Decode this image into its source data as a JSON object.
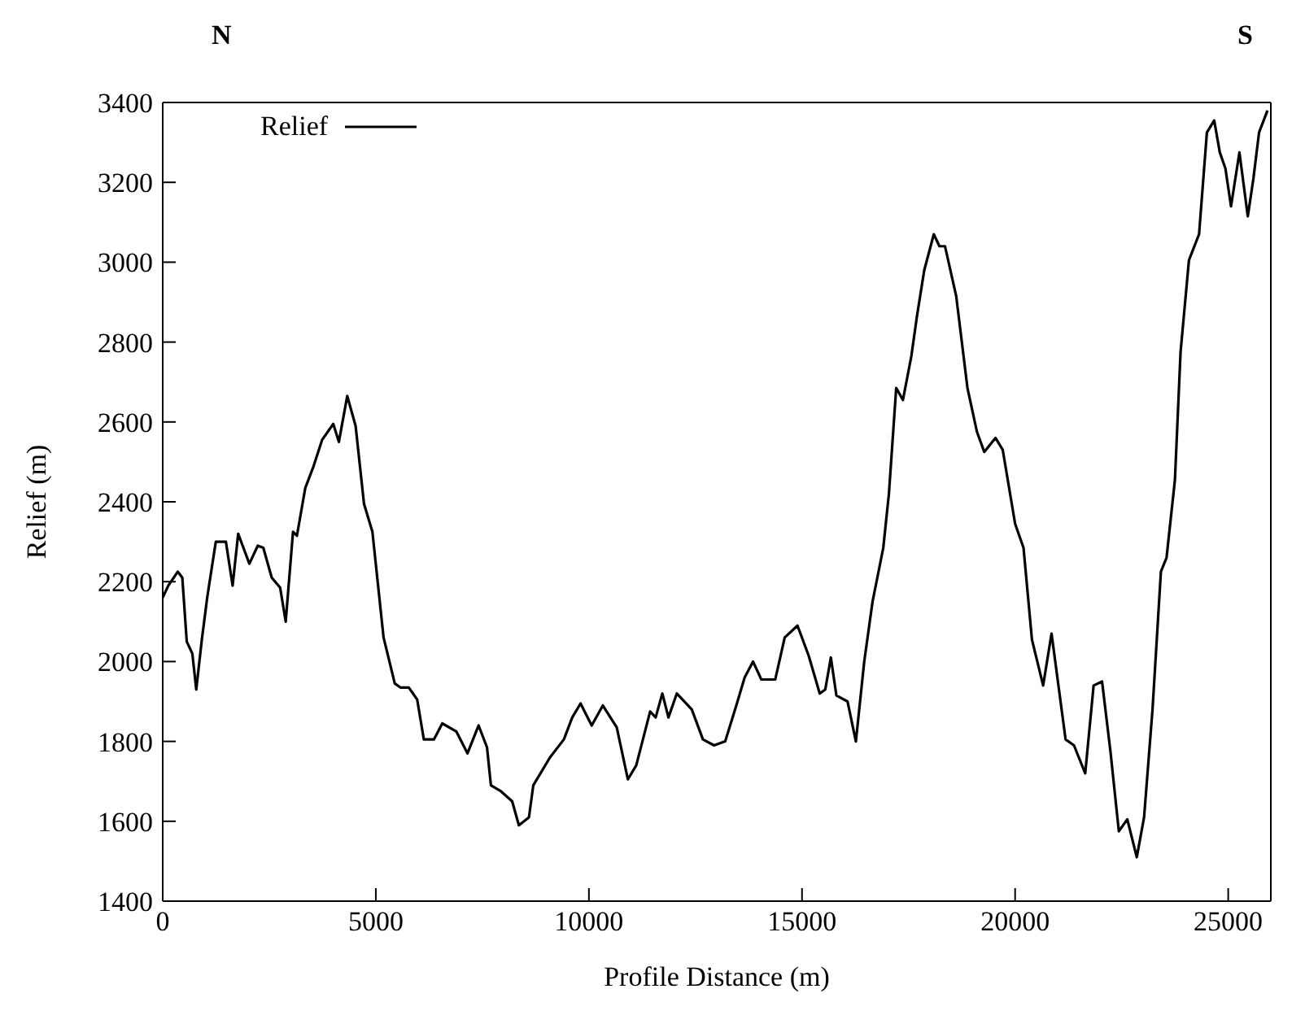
{
  "chart_data": {
    "type": "line",
    "xlabel": "Profile Distance (m)",
    "ylabel": "Relief (m)",
    "annotations": [
      "N",
      "S"
    ],
    "x": [
      0,
      130,
      354,
      460,
      564,
      695,
      787,
      918,
      1050,
      1246,
      1482,
      1640,
      1771,
      2033,
      2230,
      2360,
      2558,
      2755,
      2886,
      3057,
      3149,
      3346,
      3542,
      3739,
      4002,
      4133,
      4330,
      4526,
      4723,
      4920,
      5182,
      5445,
      5576,
      5773,
      5970,
      6127,
      6363,
      6560,
      6888,
      7150,
      7412,
      7609,
      7701,
      7937,
      8199,
      8357,
      8593,
      8695,
      9087,
      9413,
      9609,
      9804,
      10065,
      10326,
      10653,
      10914,
      11110,
      11436,
      11566,
      11723,
      11866,
      12062,
      12414,
      12675,
      12936,
      13197,
      13458,
      13654,
      13850,
      14046,
      14372,
      14594,
      14894,
      15155,
      15416,
      15546,
      15677,
      15807,
      16068,
      16264,
      16460,
      16655,
      16907,
      17039,
      17210,
      17368,
      17566,
      17697,
      17868,
      18092,
      18224,
      18355,
      18618,
      18882,
      19105,
      19276,
      19539,
      19710,
      20000,
      20197,
      20395,
      20658,
      20855,
      21184,
      21382,
      21645,
      21842,
      22040,
      22237,
      22434,
      22632,
      22855,
      23026,
      23224,
      23421,
      23553,
      23750,
      23882,
      24079,
      24316,
      24500,
      24671,
      24803,
      24934,
      25066,
      25263,
      25460,
      25592,
      25724,
      25921
    ],
    "series": [
      {
        "name": "Relief",
        "color": "#000000",
        "values": [
          2160,
          2190,
          2225,
          2210,
          2050,
          2020,
          1930,
          2055,
          2165,
          2300,
          2300,
          2190,
          2320,
          2245,
          2290,
          2285,
          2210,
          2185,
          2100,
          2325,
          2315,
          2435,
          2490,
          2555,
          2595,
          2550,
          2665,
          2590,
          2395,
          2325,
          2060,
          1945,
          1935,
          1935,
          1905,
          1805,
          1805,
          1845,
          1825,
          1770,
          1840,
          1785,
          1690,
          1675,
          1650,
          1590,
          1610,
          1690,
          1760,
          1805,
          1860,
          1895,
          1840,
          1890,
          1835,
          1705,
          1740,
          1875,
          1860,
          1920,
          1860,
          1920,
          1880,
          1805,
          1790,
          1800,
          1890,
          1960,
          2000,
          1955,
          1955,
          2060,
          2090,
          2015,
          1920,
          1930,
          2010,
          1915,
          1900,
          1800,
          2000,
          2150,
          2285,
          2420,
          2685,
          2655,
          2765,
          2865,
          2980,
          3070,
          3040,
          3040,
          2915,
          2685,
          2575,
          2525,
          2560,
          2530,
          2345,
          2285,
          2055,
          1940,
          2070,
          1805,
          1790,
          1720,
          1940,
          1950,
          1775,
          1575,
          1605,
          1510,
          1610,
          1880,
          2225,
          2260,
          2455,
          2775,
          3005,
          3070,
          3325,
          3355,
          3275,
          3235,
          3140,
          3275,
          3115,
          3210,
          3325,
          3380
        ]
      }
    ],
    "xlim": [
      0,
      26000
    ],
    "xticks": [
      0,
      5000,
      10000,
      15000,
      20000,
      25000
    ],
    "ylim": [
      1400,
      3400
    ],
    "yticks": [
      1400,
      1600,
      1800,
      2000,
      2200,
      2400,
      2600,
      2800,
      3000,
      3200,
      3400
    ],
    "legend": "top left",
    "marker": "none",
    "line_style": "solid",
    "grid": false
  }
}
